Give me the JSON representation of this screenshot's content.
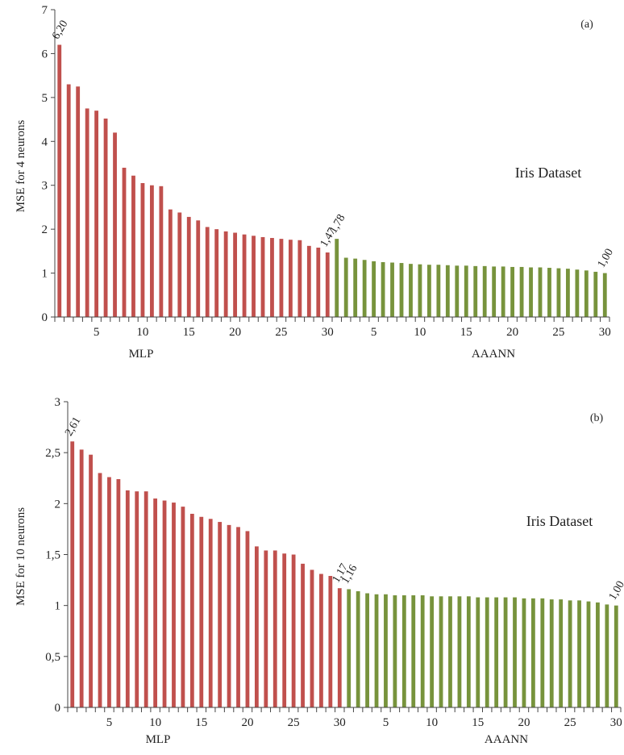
{
  "chart_data": [
    {
      "type": "bar",
      "panel_label": "(a)",
      "annotation": "Iris Dataset",
      "ylabel": "MSE for 4 neurons",
      "xlabel": "",
      "ylim": [
        0,
        7
      ],
      "yticks": [
        "0",
        "1",
        "2",
        "3",
        "4",
        "5",
        "6",
        "7"
      ],
      "xtick_labels": [
        "5",
        "10",
        "15",
        "20",
        "25",
        "30"
      ],
      "grid": false,
      "legend": "none",
      "series": [
        {
          "group_label": "MLP",
          "color": "#c0504d",
          "values": [
            6.2,
            5.3,
            5.25,
            4.75,
            4.7,
            4.52,
            4.2,
            3.4,
            3.22,
            3.05,
            3.0,
            2.98,
            2.45,
            2.38,
            2.28,
            2.2,
            2.05,
            2.0,
            1.95,
            1.92,
            1.88,
            1.85,
            1.82,
            1.8,
            1.78,
            1.76,
            1.75,
            1.62,
            1.58,
            1.47
          ]
        },
        {
          "group_label": "AAANN",
          "color": "#77933c",
          "values": [
            1.78,
            1.35,
            1.33,
            1.3,
            1.27,
            1.25,
            1.24,
            1.23,
            1.21,
            1.2,
            1.19,
            1.19,
            1.18,
            1.17,
            1.17,
            1.16,
            1.16,
            1.15,
            1.15,
            1.14,
            1.14,
            1.13,
            1.13,
            1.12,
            1.11,
            1.1,
            1.08,
            1.06,
            1.03,
            1.0
          ]
        }
      ],
      "data_labels": [
        {
          "series": 0,
          "index": 0,
          "text": "6,20"
        },
        {
          "series": 0,
          "index": 29,
          "text": "1,47"
        },
        {
          "series": 1,
          "index": 0,
          "text": "1,78"
        },
        {
          "series": 1,
          "index": 29,
          "text": "1,00"
        }
      ]
    },
    {
      "type": "bar",
      "panel_label": "(b)",
      "annotation": "Iris Dataset",
      "ylabel": "MSE for 10 neurons",
      "xlabel": "",
      "ylim": [
        0,
        3
      ],
      "yticks": [
        "0",
        "0,5",
        "1",
        "1,5",
        "2",
        "2,5",
        "3"
      ],
      "xtick_labels": [
        "5",
        "10",
        "15",
        "20",
        "25",
        "30"
      ],
      "grid": false,
      "legend": "none",
      "series": [
        {
          "group_label": "MLP",
          "color": "#c0504d",
          "values": [
            2.61,
            2.53,
            2.48,
            2.3,
            2.26,
            2.24,
            2.13,
            2.12,
            2.12,
            2.05,
            2.03,
            2.01,
            1.97,
            1.9,
            1.87,
            1.85,
            1.82,
            1.79,
            1.77,
            1.73,
            1.58,
            1.54,
            1.54,
            1.51,
            1.5,
            1.41,
            1.35,
            1.31,
            1.29,
            1.17
          ]
        },
        {
          "group_label": "AAANN",
          "color": "#77933c",
          "values": [
            1.16,
            1.14,
            1.12,
            1.11,
            1.11,
            1.1,
            1.1,
            1.1,
            1.1,
            1.09,
            1.09,
            1.09,
            1.09,
            1.09,
            1.08,
            1.08,
            1.08,
            1.08,
            1.08,
            1.07,
            1.07,
            1.07,
            1.06,
            1.06,
            1.05,
            1.05,
            1.04,
            1.03,
            1.01,
            1.0
          ]
        }
      ],
      "data_labels": [
        {
          "series": 0,
          "index": 0,
          "text": "2,61"
        },
        {
          "series": 0,
          "index": 29,
          "text": "1,17"
        },
        {
          "series": 1,
          "index": 0,
          "text": "1,16"
        },
        {
          "series": 1,
          "index": 29,
          "text": "1,00"
        }
      ]
    }
  ]
}
